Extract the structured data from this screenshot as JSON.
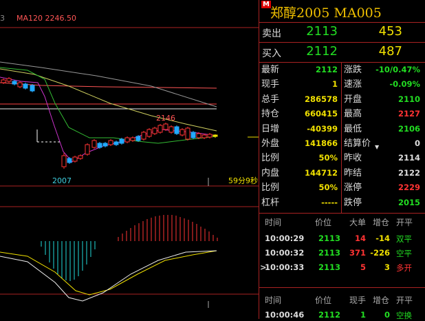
{
  "chart": {
    "ma_label_prefix": "3",
    "ma_label": "MA120 2246.50",
    "high_label": "2146",
    "low_label": "2007",
    "period_label": "59分9秒"
  },
  "panel": {
    "marker": "M",
    "title": "郑醇2005  MA005",
    "sell": {
      "label": "卖出",
      "price": "2113",
      "vol": "453"
    },
    "buy": {
      "label": "买入",
      "price": "2112",
      "vol": "487"
    },
    "left": [
      {
        "label": "最新",
        "value": "2112",
        "color": "gr"
      },
      {
        "label": "现手",
        "value": "1",
        "color": "yl"
      },
      {
        "label": "总手",
        "value": "286578",
        "color": "yl"
      },
      {
        "label": "持仓",
        "value": "660415",
        "color": "yl"
      },
      {
        "label": "日增",
        "value": "-40399",
        "color": "yl"
      },
      {
        "label": "外盘",
        "value": "141866",
        "color": "yl"
      },
      {
        "label": "比例",
        "value": "50%",
        "color": "yl"
      },
      {
        "label": "内盘",
        "value": "144712",
        "color": "yl"
      },
      {
        "label": "比例",
        "value": "50%",
        "color": "yl"
      },
      {
        "label": "杠杆",
        "value": "-----",
        "color": "yl"
      }
    ],
    "right": [
      {
        "label": "涨跌",
        "value": "-10/0.47%",
        "color": "gr"
      },
      {
        "label": "速涨",
        "value": "-0.09%",
        "color": "gr"
      },
      {
        "label": "开盘",
        "value": "2110",
        "color": "gr"
      },
      {
        "label": "最高",
        "value": "2127",
        "color": "rd"
      },
      {
        "label": "最低",
        "value": "2106",
        "color": "gr"
      },
      {
        "label": "结算价",
        "value": "0",
        "color": "wh"
      },
      {
        "label": "昨收",
        "value": "2114",
        "color": "wh"
      },
      {
        "label": "昨结",
        "value": "2122",
        "color": "wh"
      },
      {
        "label": "涨停",
        "value": "2229",
        "color": "rd"
      },
      {
        "label": "跌停",
        "value": "2015",
        "color": "gr"
      }
    ],
    "ticks_header1": [
      "时间",
      "价位",
      "大单",
      "增仓",
      "开平"
    ],
    "ticks": [
      {
        "time": "10:00:29",
        "price": "2113",
        "vol": "14",
        "oi": "-14",
        "type": "双平",
        "marker": ""
      },
      {
        "time": "10:00:32",
        "price": "2113",
        "vol": "371",
        "oi": "-226",
        "type": "空平",
        "marker": ""
      },
      {
        "time": "10:00:33",
        "price": "2113",
        "vol": "5",
        "oi": "3",
        "type": "多开",
        "marker": ">"
      }
    ],
    "ticks_header2": [
      "时间",
      "价位",
      "现手",
      "增仓",
      "开平"
    ],
    "ticks2": [
      {
        "time": "10:00:46",
        "price": "2112",
        "vol": "1",
        "oi": "0",
        "type": "空换"
      }
    ]
  },
  "colors": {
    "up": "#ff3333",
    "down": "#22dd22",
    "accent": "#f0e000",
    "border": "#aa2222"
  }
}
